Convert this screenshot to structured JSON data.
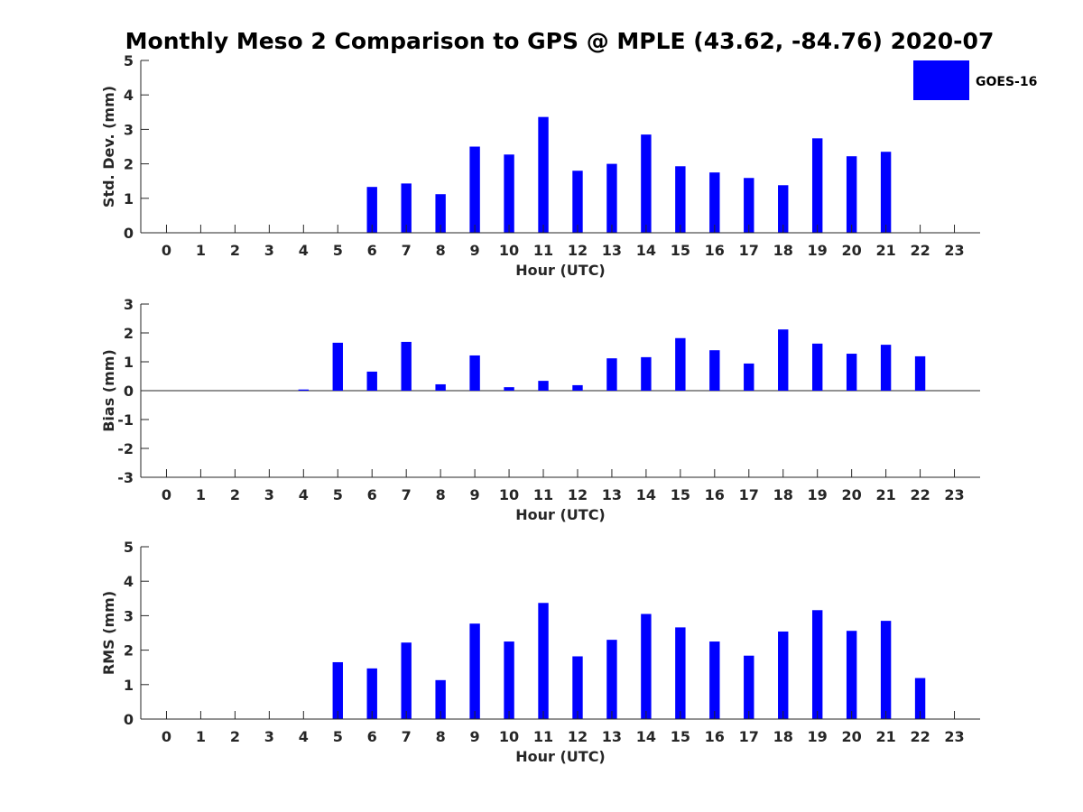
{
  "title": "Monthly Meso 2 Comparison to GPS @ MPLE (43.62, -84.76) 2020-07",
  "legend": {
    "label": "GOES-16",
    "position": "top-right"
  },
  "colors": {
    "bar": "#0000ff",
    "axis": "#262626"
  },
  "chart_data": [
    {
      "type": "bar",
      "xlabel": "Hour (UTC)",
      "ylabel": "Std. Dev. (mm)",
      "ylim": [
        0,
        5
      ],
      "yticks": [
        0,
        1,
        2,
        3,
        4,
        5
      ],
      "categories": [
        "0",
        "1",
        "2",
        "3",
        "4",
        "5",
        "6",
        "7",
        "8",
        "9",
        "10",
        "11",
        "12",
        "13",
        "14",
        "15",
        "16",
        "17",
        "18",
        "19",
        "20",
        "21",
        "22",
        "23"
      ],
      "series": [
        {
          "name": "GOES-16",
          "values": [
            null,
            null,
            null,
            null,
            null,
            null,
            1.33,
            1.43,
            1.12,
            2.5,
            2.27,
            3.36,
            1.8,
            2.0,
            2.85,
            1.93,
            1.75,
            1.59,
            1.38,
            2.74,
            2.22,
            2.35,
            null,
            null
          ]
        }
      ]
    },
    {
      "type": "bar",
      "xlabel": "Hour (UTC)",
      "ylabel": "Bias (mm)",
      "ylim": [
        -3,
        3
      ],
      "yticks": [
        -3,
        -2,
        -1,
        0,
        1,
        2,
        3
      ],
      "categories": [
        "0",
        "1",
        "2",
        "3",
        "4",
        "5",
        "6",
        "7",
        "8",
        "9",
        "10",
        "11",
        "12",
        "13",
        "14",
        "15",
        "16",
        "17",
        "18",
        "19",
        "20",
        "21",
        "22",
        "23"
      ],
      "series": [
        {
          "name": "GOES-16",
          "values": [
            null,
            null,
            null,
            null,
            0.04,
            1.66,
            0.66,
            1.69,
            0.22,
            1.22,
            0.12,
            0.34,
            0.19,
            1.12,
            1.16,
            1.82,
            1.4,
            0.94,
            2.12,
            1.63,
            1.28,
            1.59,
            1.19,
            null
          ]
        }
      ]
    },
    {
      "type": "bar",
      "xlabel": "Hour (UTC)",
      "ylabel": "RMS (mm)",
      "ylim": [
        0,
        5
      ],
      "yticks": [
        0,
        1,
        2,
        3,
        4,
        5
      ],
      "categories": [
        "0",
        "1",
        "2",
        "3",
        "4",
        "5",
        "6",
        "7",
        "8",
        "9",
        "10",
        "11",
        "12",
        "13",
        "14",
        "15",
        "16",
        "17",
        "18",
        "19",
        "20",
        "21",
        "22",
        "23"
      ],
      "series": [
        {
          "name": "GOES-16",
          "values": [
            null,
            null,
            null,
            null,
            null,
            1.65,
            1.47,
            2.22,
            1.13,
            2.77,
            2.25,
            3.37,
            1.82,
            2.3,
            3.05,
            2.66,
            2.25,
            1.84,
            2.54,
            3.16,
            2.56,
            2.85,
            1.19,
            null
          ]
        }
      ]
    }
  ]
}
